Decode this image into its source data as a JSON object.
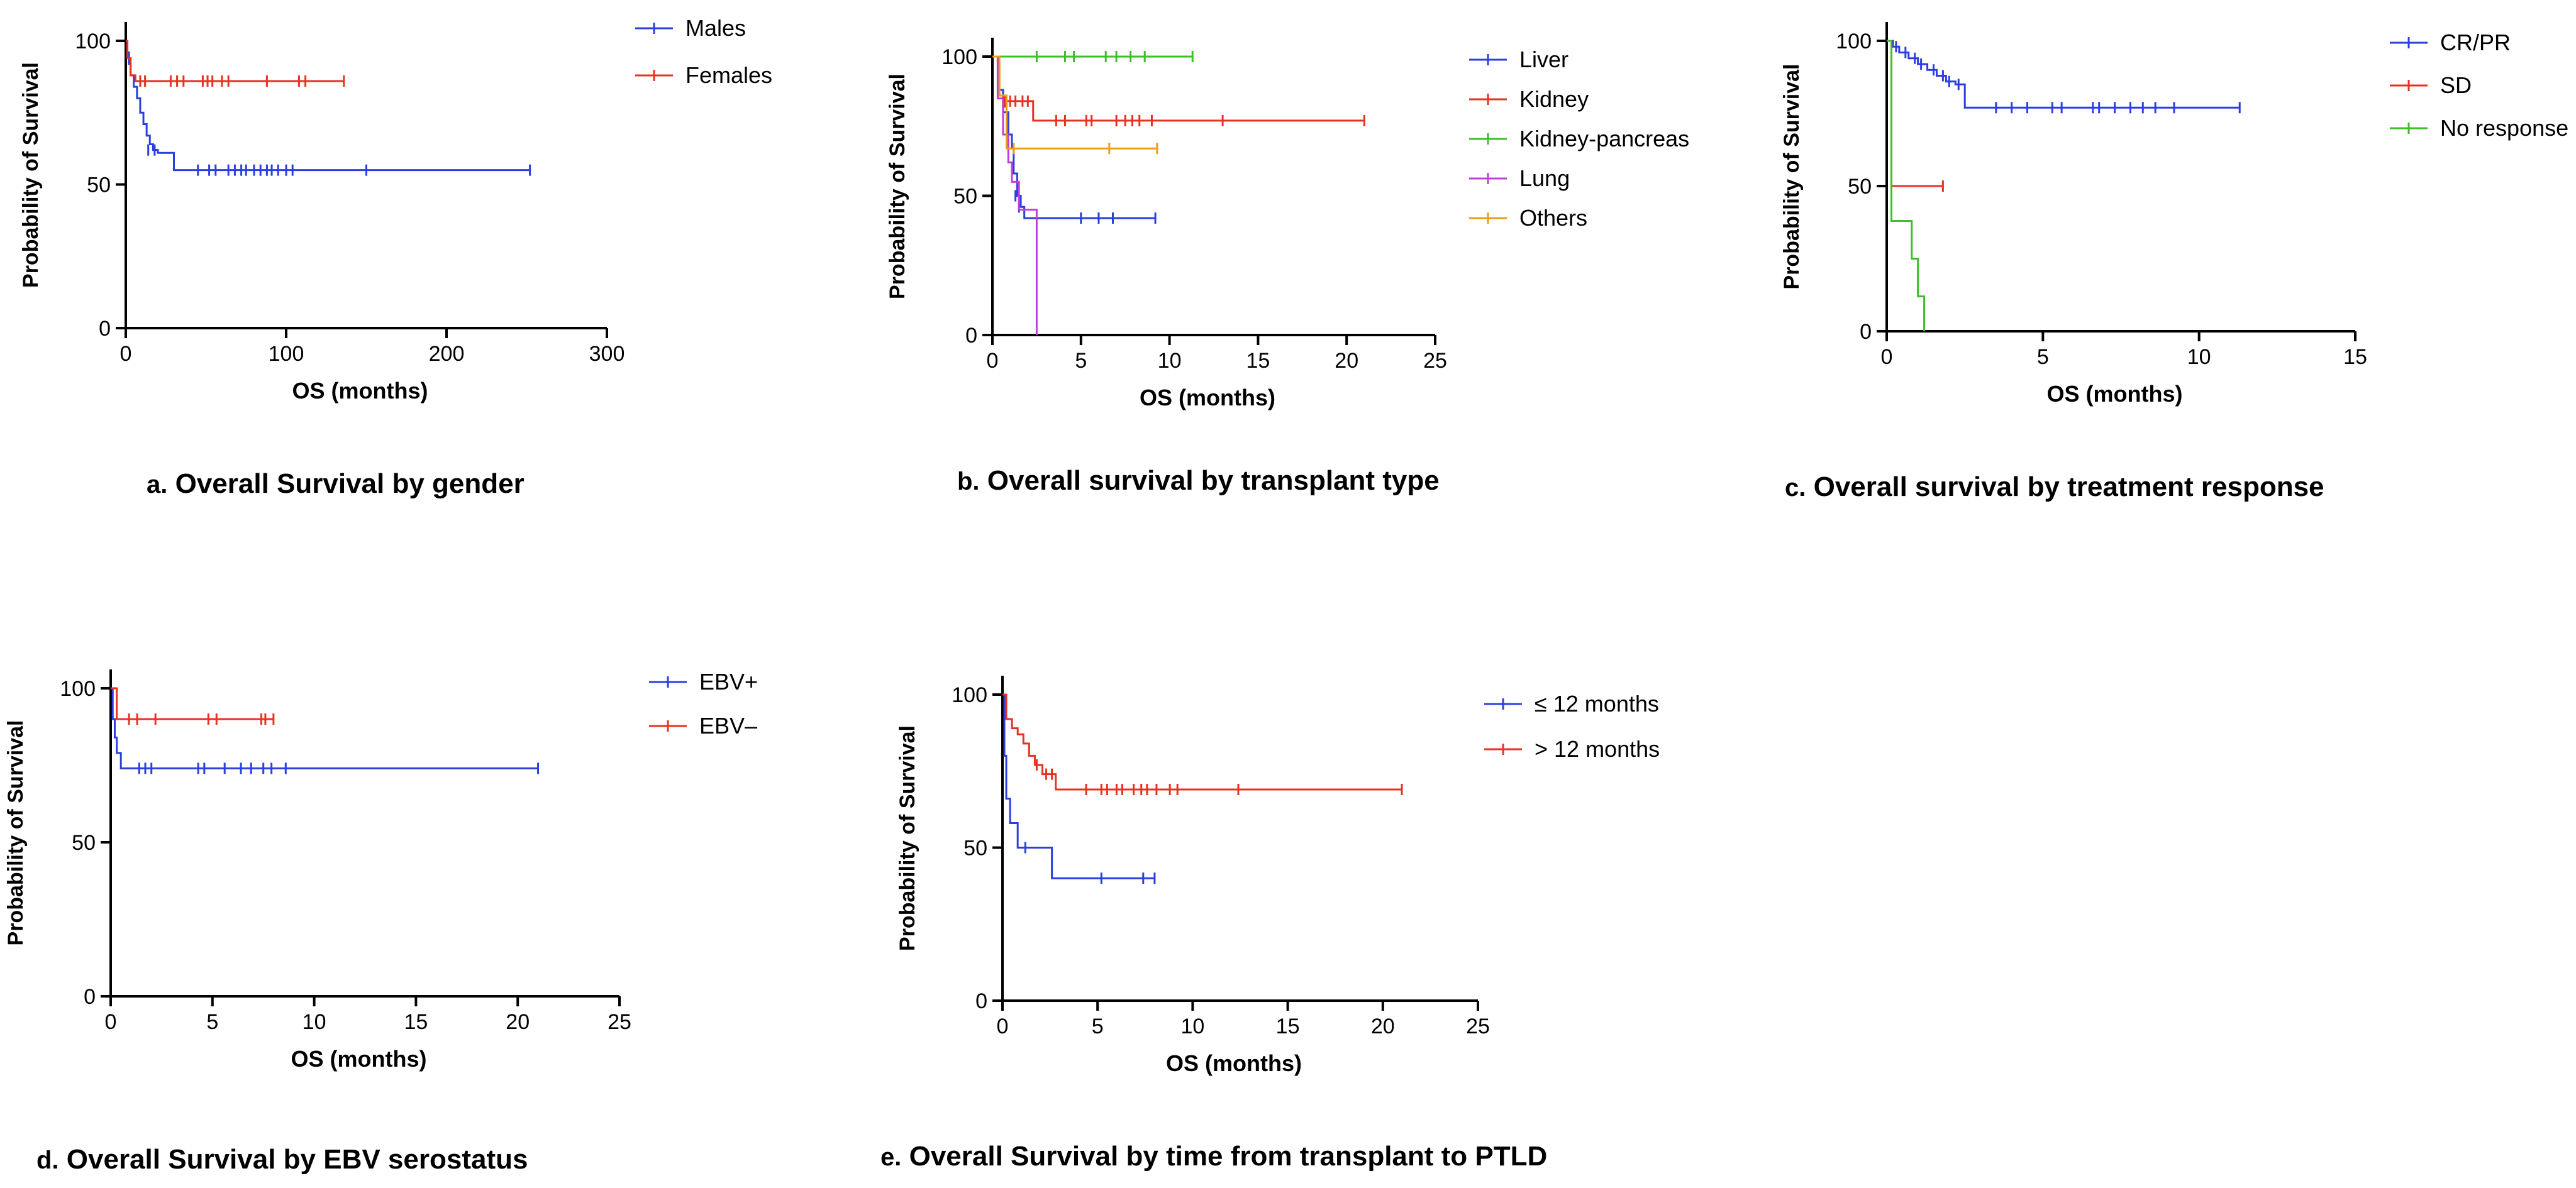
{
  "chart_data": [
    {
      "id": "a",
      "type": "line",
      "subtype": "kaplan-meier",
      "xlabel": "OS (months)",
      "ylabel": "Probability of Survival",
      "xlim": [
        0,
        300
      ],
      "ylim": [
        0,
        110
      ],
      "xticks": [
        "0",
        "100",
        "200",
        "300"
      ],
      "yticks": [
        "0",
        "50",
        "100"
      ],
      "caption_letter": "a.",
      "caption_text": "Overall Survival by gender",
      "series": [
        {
          "name": "Males",
          "color": "#2B3FE0",
          "steps": [
            [
              0,
              100
            ],
            [
              1,
              96
            ],
            [
              2,
              92
            ],
            [
              3,
              88
            ],
            [
              5,
              84
            ],
            [
              7,
              80
            ],
            [
              9,
              75
            ],
            [
              11,
              71
            ],
            [
              13,
              67
            ],
            [
              15,
              64
            ],
            [
              17,
              62
            ],
            [
              20,
              61
            ],
            [
              30,
              55
            ],
            [
              252,
              55
            ]
          ],
          "censors": [
            [
              14,
              62
            ],
            [
              18,
              62
            ],
            [
              45,
              55
            ],
            [
              52,
              55
            ],
            [
              56,
              55
            ],
            [
              64,
              55
            ],
            [
              68,
              55
            ],
            [
              72,
              55
            ],
            [
              75,
              55
            ],
            [
              80,
              55
            ],
            [
              84,
              55
            ],
            [
              88,
              55
            ],
            [
              91,
              55
            ],
            [
              95,
              55
            ],
            [
              100,
              55
            ],
            [
              104,
              55
            ],
            [
              150,
              55
            ],
            [
              252,
              55
            ]
          ]
        },
        {
          "name": "Females",
          "color": "#E53222",
          "steps": [
            [
              0,
              100
            ],
            [
              1,
              94
            ],
            [
              3,
              88
            ],
            [
              6,
              86
            ],
            [
              136,
              86
            ]
          ],
          "censors": [
            [
              9,
              86
            ],
            [
              12,
              86
            ],
            [
              28,
              86
            ],
            [
              32,
              86
            ],
            [
              36,
              86
            ],
            [
              48,
              86
            ],
            [
              51,
              86
            ],
            [
              54,
              86
            ],
            [
              60,
              86
            ],
            [
              64,
              86
            ],
            [
              88,
              86
            ],
            [
              108,
              86
            ],
            [
              112,
              86
            ],
            [
              136,
              86
            ]
          ]
        }
      ]
    },
    {
      "id": "b",
      "type": "line",
      "subtype": "kaplan-meier",
      "xlabel": "OS (months)",
      "ylabel": "Probability of Survival",
      "xlim": [
        0,
        25
      ],
      "ylim": [
        0,
        110
      ],
      "xticks": [
        "0",
        "5",
        "10",
        "15",
        "20",
        "25"
      ],
      "yticks": [
        "0",
        "50",
        "100"
      ],
      "caption_letter": "b.",
      "caption_text": "Overall survival by transplant type",
      "series": [
        {
          "name": "Liver",
          "color": "#2B3FE0",
          "steps": [
            [
              0,
              100
            ],
            [
              0.3,
              88
            ],
            [
              0.6,
              80
            ],
            [
              0.9,
              72
            ],
            [
              1.1,
              67
            ],
            [
              1.2,
              58
            ],
            [
              1.4,
              50
            ],
            [
              1.6,
              46
            ],
            [
              1.8,
              42
            ],
            [
              9.2,
              42
            ]
          ],
          "censors": [
            [
              1.3,
              50
            ],
            [
              1.5,
              46
            ],
            [
              5.0,
              42
            ],
            [
              6.0,
              42
            ],
            [
              6.8,
              42
            ],
            [
              9.2,
              42
            ]
          ]
        },
        {
          "name": "Kidney",
          "color": "#E53222",
          "steps": [
            [
              0,
              100
            ],
            [
              0.3,
              86
            ],
            [
              0.6,
              82
            ],
            [
              0.8,
              84
            ],
            [
              2.2,
              84
            ],
            [
              2.3,
              77
            ],
            [
              21,
              77
            ]
          ],
          "censors": [
            [
              0.7,
              84
            ],
            [
              1.0,
              84
            ],
            [
              1.3,
              84
            ],
            [
              1.7,
              84
            ],
            [
              2.0,
              84
            ],
            [
              3.6,
              77
            ],
            [
              4.1,
              77
            ],
            [
              5.3,
              77
            ],
            [
              5.6,
              77
            ],
            [
              7.0,
              77
            ],
            [
              7.5,
              77
            ],
            [
              7.9,
              77
            ],
            [
              8.3,
              77
            ],
            [
              9.0,
              77
            ],
            [
              13.0,
              77
            ],
            [
              21,
              77
            ]
          ]
        },
        {
          "name": "Kidney-pancreas",
          "color": "#3DBE2A",
          "steps": [
            [
              0,
              100
            ],
            [
              11.3,
              100
            ]
          ],
          "censors": [
            [
              2.5,
              100
            ],
            [
              4.1,
              100
            ],
            [
              4.6,
              100
            ],
            [
              6.4,
              100
            ],
            [
              7.0,
              100
            ],
            [
              7.8,
              100
            ],
            [
              8.6,
              100
            ],
            [
              11.3,
              100
            ]
          ]
        },
        {
          "name": "Lung",
          "color": "#C13FD9",
          "steps": [
            [
              0,
              100
            ],
            [
              0.3,
              85
            ],
            [
              0.6,
              72
            ],
            [
              0.9,
              62
            ],
            [
              1.1,
              55
            ],
            [
              1.5,
              45
            ],
            [
              2.5,
              45
            ],
            [
              2.5,
              0
            ]
          ],
          "censors": []
        },
        {
          "name": "Others",
          "color": "#F29A1B",
          "steps": [
            [
              0,
              100
            ],
            [
              0.4,
              86
            ],
            [
              0.8,
              67
            ],
            [
              9.3,
              67
            ]
          ],
          "censors": [
            [
              1.2,
              67
            ],
            [
              6.6,
              67
            ],
            [
              9.3,
              67
            ]
          ]
        }
      ]
    },
    {
      "id": "c",
      "type": "line",
      "subtype": "kaplan-meier",
      "xlabel": "OS (months)",
      "ylabel": "Probability of Survival",
      "xlim": [
        0,
        15
      ],
      "ylim": [
        0,
        110
      ],
      "xticks": [
        "0",
        "5",
        "10",
        "15"
      ],
      "yticks": [
        "0",
        "50",
        "100"
      ],
      "caption_letter": "c.",
      "caption_text": "Overall survival by treatment response",
      "series": [
        {
          "name": "CR/PR",
          "color": "#2B3FE0",
          "steps": [
            [
              0,
              100
            ],
            [
              0.2,
              98
            ],
            [
              0.4,
              96
            ],
            [
              0.7,
              94
            ],
            [
              1.0,
              92
            ],
            [
              1.3,
              90
            ],
            [
              1.6,
              88
            ],
            [
              1.9,
              86
            ],
            [
              2.2,
              85
            ],
            [
              2.5,
              77
            ],
            [
              11.3,
              77
            ]
          ],
          "censors": [
            [
              0.3,
              98
            ],
            [
              0.6,
              96
            ],
            [
              0.9,
              94
            ],
            [
              1.1,
              92
            ],
            [
              1.5,
              90
            ],
            [
              1.8,
              88
            ],
            [
              2.0,
              86
            ],
            [
              2.3,
              85
            ],
            [
              3.5,
              77
            ],
            [
              4.0,
              77
            ],
            [
              4.5,
              77
            ],
            [
              5.3,
              77
            ],
            [
              5.6,
              77
            ],
            [
              6.6,
              77
            ],
            [
              6.8,
              77
            ],
            [
              7.3,
              77
            ],
            [
              7.8,
              77
            ],
            [
              8.2,
              77
            ],
            [
              8.6,
              77
            ],
            [
              9.2,
              77
            ],
            [
              11.3,
              77
            ]
          ]
        },
        {
          "name": "SD",
          "color": "#E53222",
          "steps": [
            [
              0,
              100
            ],
            [
              0.15,
              50
            ],
            [
              1.8,
              50
            ]
          ],
          "censors": [
            [
              1.8,
              50
            ]
          ]
        },
        {
          "name": "No response",
          "color": "#3DBE2A",
          "steps": [
            [
              0,
              100
            ],
            [
              0.15,
              38
            ],
            [
              0.8,
              38
            ],
            [
              0.8,
              25
            ],
            [
              1.0,
              25
            ],
            [
              1.0,
              12
            ],
            [
              1.2,
              12
            ],
            [
              1.2,
              0
            ]
          ],
          "censors": []
        }
      ]
    },
    {
      "id": "d",
      "type": "line",
      "subtype": "kaplan-meier",
      "xlabel": "OS (months)",
      "ylabel": "Probability of Survival",
      "xlim": [
        0,
        25
      ],
      "ylim": [
        0,
        110
      ],
      "xticks": [
        "0",
        "5",
        "10",
        "15",
        "20",
        "25"
      ],
      "yticks": [
        "0",
        "50",
        "100"
      ],
      "caption_letter": "d.",
      "caption_text": "Overall Survival by EBV serostatus",
      "series": [
        {
          "name": "EBV+",
          "color": "#2B3FE0",
          "steps": [
            [
              0,
              100
            ],
            [
              0.1,
              90
            ],
            [
              0.2,
              84
            ],
            [
              0.3,
              79
            ],
            [
              0.5,
              74
            ],
            [
              21,
              74
            ]
          ],
          "censors": [
            [
              1.4,
              74
            ],
            [
              1.7,
              74
            ],
            [
              2.0,
              74
            ],
            [
              4.3,
              74
            ],
            [
              4.6,
              74
            ],
            [
              5.6,
              74
            ],
            [
              6.4,
              74
            ],
            [
              6.9,
              74
            ],
            [
              7.5,
              74
            ],
            [
              7.9,
              74
            ],
            [
              8.6,
              74
            ],
            [
              21,
              74
            ]
          ]
        },
        {
          "name": "EBV–",
          "color": "#E53222",
          "steps": [
            [
              0,
              100
            ],
            [
              0.3,
              90
            ],
            [
              8,
              90
            ]
          ],
          "censors": [
            [
              0.9,
              90
            ],
            [
              1.3,
              90
            ],
            [
              2.2,
              90
            ],
            [
              4.8,
              90
            ],
            [
              5.2,
              90
            ],
            [
              7.4,
              90
            ],
            [
              7.6,
              90
            ],
            [
              8,
              90
            ]
          ]
        }
      ]
    },
    {
      "id": "e",
      "type": "line",
      "subtype": "kaplan-meier",
      "xlabel": "OS (months)",
      "ylabel": "Probability of Survival",
      "xlim": [
        0,
        25
      ],
      "ylim": [
        0,
        110
      ],
      "xticks": [
        "0",
        "5",
        "10",
        "15",
        "20",
        "25"
      ],
      "yticks": [
        "0",
        "50",
        "100"
      ],
      "caption_letter": "e.",
      "caption_text": "Overall Survival by time from transplant to PTLD",
      "series": [
        {
          "name": "≤ 12 months",
          "color": "#2B3FE0",
          "steps": [
            [
              0,
              100
            ],
            [
              0.1,
              80
            ],
            [
              0.2,
              66
            ],
            [
              0.4,
              58
            ],
            [
              0.8,
              50
            ],
            [
              2.5,
              50
            ],
            [
              2.6,
              40
            ],
            [
              8,
              40
            ]
          ],
          "censors": [
            [
              1.2,
              50
            ],
            [
              5.2,
              40
            ],
            [
              7.4,
              40
            ],
            [
              8,
              40
            ]
          ]
        },
        {
          "name": "> 12 months",
          "color": "#E53222",
          "steps": [
            [
              0,
              100
            ],
            [
              0.2,
              92
            ],
            [
              0.5,
              89
            ],
            [
              0.8,
              87
            ],
            [
              1.1,
              84
            ],
            [
              1.4,
              80
            ],
            [
              1.7,
              77
            ],
            [
              2.1,
              74
            ],
            [
              2.8,
              69
            ],
            [
              21,
              69
            ]
          ],
          "censors": [
            [
              1.8,
              77
            ],
            [
              2.3,
              74
            ],
            [
              2.6,
              74
            ],
            [
              4.4,
              69
            ],
            [
              5.2,
              69
            ],
            [
              5.5,
              69
            ],
            [
              6.0,
              69
            ],
            [
              6.3,
              69
            ],
            [
              6.9,
              69
            ],
            [
              7.3,
              69
            ],
            [
              7.6,
              69
            ],
            [
              8.1,
              69
            ],
            [
              8.8,
              69
            ],
            [
              9.2,
              69
            ],
            [
              12.4,
              69
            ],
            [
              21,
              69
            ]
          ]
        }
      ]
    }
  ]
}
